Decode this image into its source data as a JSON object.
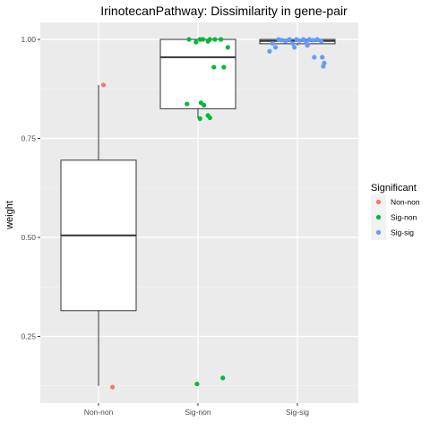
{
  "chart_data": {
    "type": "boxplot",
    "title": "IrinotecanPathway: Dissimilarity in gene-pair",
    "xlabel": "",
    "ylabel": "weight",
    "categories": [
      "Non-non",
      "Sig-non",
      "Sig-sig"
    ],
    "ylim": [
      0.1,
      1.05
    ],
    "yticks": [
      0.25,
      0.5,
      0.75,
      1.0
    ],
    "ytick_labels": [
      "0.25",
      "0.50",
      "0.75",
      "1.00"
    ],
    "grid": true,
    "legend": {
      "title": "Significant",
      "position": "right",
      "entries": [
        {
          "label": "Non-non",
          "color": "#f8766d"
        },
        {
          "label": "Sig-non",
          "color": "#00ba38"
        },
        {
          "label": "Sig-sig",
          "color": "#619cff"
        }
      ]
    },
    "boxes": [
      {
        "category": "Non-non",
        "min": 0.125,
        "q1": 0.315,
        "median": 0.505,
        "q3": 0.695,
        "max": 0.885
      },
      {
        "category": "Sig-non",
        "min": 0.8,
        "q1": 0.825,
        "median": 0.955,
        "q3": 1.0,
        "max": 1.0
      },
      {
        "category": "Sig-sig",
        "min": 0.985,
        "q1": 0.989,
        "median": 0.996,
        "q3": 1.0,
        "max": 1.0
      }
    ],
    "points": [
      {
        "category": "Non-non",
        "jitter": 0.05,
        "y": 0.885
      },
      {
        "category": "Non-non",
        "jitter": 0.14,
        "y": 0.122
      },
      {
        "category": "Sig-non",
        "jitter": -0.09,
        "y": 1.0
      },
      {
        "category": "Sig-non",
        "jitter": -0.02,
        "y": 0.993
      },
      {
        "category": "Sig-non",
        "jitter": 0.02,
        "y": 1.0
      },
      {
        "category": "Sig-non",
        "jitter": 0.05,
        "y": 1.0
      },
      {
        "category": "Sig-non",
        "jitter": 0.12,
        "y": 1.0
      },
      {
        "category": "Sig-non",
        "jitter": 0.17,
        "y": 1.0
      },
      {
        "category": "Sig-non",
        "jitter": 0.23,
        "y": 1.0
      },
      {
        "category": "Sig-non",
        "jitter": 0.1,
        "y": 0.995
      },
      {
        "category": "Sig-non",
        "jitter": 0.3,
        "y": 0.98
      },
      {
        "category": "Sig-non",
        "jitter": 0.16,
        "y": 0.93
      },
      {
        "category": "Sig-non",
        "jitter": 0.26,
        "y": 0.93
      },
      {
        "category": "Sig-non",
        "jitter": -0.11,
        "y": 0.837
      },
      {
        "category": "Sig-non",
        "jitter": 0.03,
        "y": 0.84
      },
      {
        "category": "Sig-non",
        "jitter": 0.06,
        "y": 0.834
      },
      {
        "category": "Sig-non",
        "jitter": 0.02,
        "y": 0.8
      },
      {
        "category": "Sig-non",
        "jitter": 0.1,
        "y": 0.808
      },
      {
        "category": "Sig-non",
        "jitter": 0.12,
        "y": 0.802
      },
      {
        "category": "Sig-non",
        "jitter": -0.01,
        "y": 0.13
      },
      {
        "category": "Sig-non",
        "jitter": 0.25,
        "y": 0.145
      },
      {
        "category": "Sig-sig",
        "jitter": -0.28,
        "y": 0.97
      },
      {
        "category": "Sig-sig",
        "jitter": -0.22,
        "y": 0.98
      },
      {
        "category": "Sig-sig",
        "jitter": -0.25,
        "y": 0.99
      },
      {
        "category": "Sig-sig",
        "jitter": -0.19,
        "y": 1.0
      },
      {
        "category": "Sig-sig",
        "jitter": -0.16,
        "y": 0.998
      },
      {
        "category": "Sig-sig",
        "jitter": -0.12,
        "y": 0.995
      },
      {
        "category": "Sig-sig",
        "jitter": -0.08,
        "y": 1.0
      },
      {
        "category": "Sig-sig",
        "jitter": -0.05,
        "y": 0.99
      },
      {
        "category": "Sig-sig",
        "jitter": -0.01,
        "y": 1.0
      },
      {
        "category": "Sig-sig",
        "jitter": 0.02,
        "y": 0.997
      },
      {
        "category": "Sig-sig",
        "jitter": 0.06,
        "y": 1.0
      },
      {
        "category": "Sig-sig",
        "jitter": 0.09,
        "y": 0.993
      },
      {
        "category": "Sig-sig",
        "jitter": 0.12,
        "y": 1.0
      },
      {
        "category": "Sig-sig",
        "jitter": 0.16,
        "y": 0.998
      },
      {
        "category": "Sig-sig",
        "jitter": 0.2,
        "y": 1.0
      },
      {
        "category": "Sig-sig",
        "jitter": 0.24,
        "y": 0.995
      },
      {
        "category": "Sig-sig",
        "jitter": 0.1,
        "y": 0.985
      },
      {
        "category": "Sig-sig",
        "jitter": -0.03,
        "y": 0.98
      },
      {
        "category": "Sig-sig",
        "jitter": 0.17,
        "y": 0.955
      },
      {
        "category": "Sig-sig",
        "jitter": 0.25,
        "y": 0.955
      },
      {
        "category": "Sig-sig",
        "jitter": 0.27,
        "y": 0.94
      },
      {
        "category": "Sig-sig",
        "jitter": 0.26,
        "y": 0.932
      }
    ]
  }
}
